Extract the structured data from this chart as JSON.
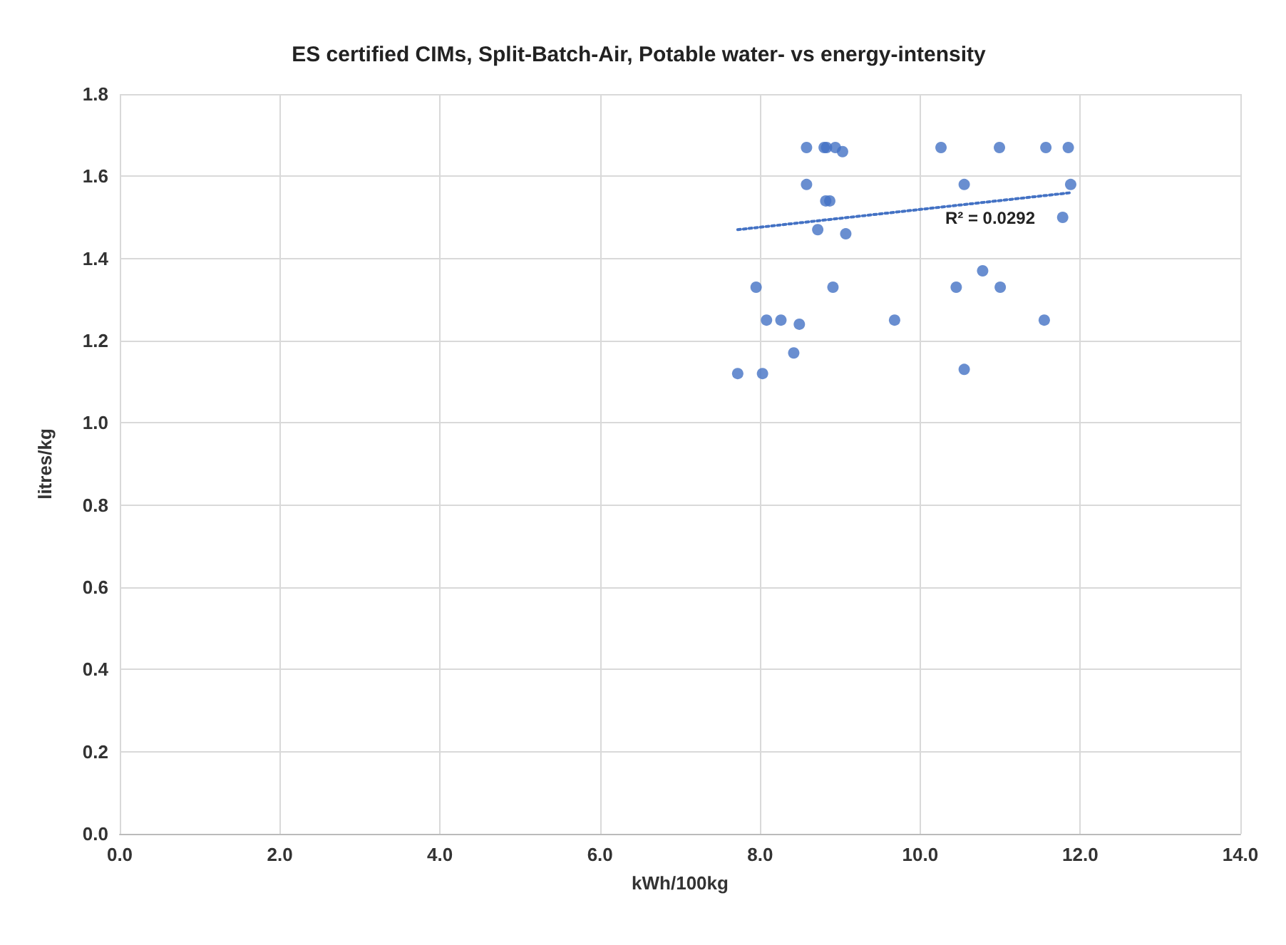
{
  "chart_data": {
    "type": "scatter",
    "title": "ES certified CIMs, Split-Batch-Air, Potable water- vs energy-intensity",
    "xlabel": "kWh/100kg",
    "ylabel": "litres/kg",
    "xlim": [
      0,
      14
    ],
    "xticks": [
      {
        "value": 0,
        "label": "0.0"
      },
      {
        "value": 2,
        "label": "2.0"
      },
      {
        "value": 4,
        "label": "4.0"
      },
      {
        "value": 6,
        "label": "6.0"
      },
      {
        "value": 8,
        "label": "8.0"
      },
      {
        "value": 10,
        "label": "10.0"
      },
      {
        "value": 12,
        "label": "12.0"
      },
      {
        "value": 14,
        "label": "14.0"
      }
    ],
    "ylim": [
      0,
      1.8
    ],
    "yticks": [
      {
        "value": 0,
        "label": "0.0"
      },
      {
        "value": 0.2,
        "label": "0.2"
      },
      {
        "value": 0.4,
        "label": "0.4"
      },
      {
        "value": 0.6,
        "label": "0.6"
      },
      {
        "value": 0.8,
        "label": "0.8"
      },
      {
        "value": 1.0,
        "label": "1.0"
      },
      {
        "value": 1.2,
        "label": "1.2"
      },
      {
        "value": 1.4,
        "label": "1.4"
      },
      {
        "value": 1.6,
        "label": "1.6"
      },
      {
        "value": 1.8,
        "label": "1.8"
      }
    ],
    "grid": true,
    "marker": "circle",
    "series": [
      {
        "color": "#4472c4",
        "x": [
          8.58,
          8.8,
          8.83,
          8.94,
          9.03,
          10.26,
          10.99,
          11.57,
          11.85,
          8.58,
          8.82,
          8.87,
          10.55,
          11.88,
          11.78,
          8.72,
          9.07,
          7.95,
          8.91,
          8.08,
          8.26,
          8.49,
          9.68,
          8.42,
          7.72,
          8.03,
          10.45,
          10.78,
          11.0,
          11.55,
          10.55
        ],
        "values": [
          1.67,
          1.67,
          1.67,
          1.67,
          1.66,
          1.67,
          1.67,
          1.67,
          1.67,
          1.58,
          1.54,
          1.54,
          1.58,
          1.58,
          1.5,
          1.47,
          1.46,
          1.33,
          1.33,
          1.25,
          1.25,
          1.24,
          1.25,
          1.17,
          1.12,
          1.12,
          1.33,
          1.37,
          1.33,
          1.25,
          1.13
        ]
      },
      {
        "type": "line",
        "color": "#4472c4",
        "line_style": "dotted",
        "marker": "none",
        "x": [
          7.72,
          11.88
        ],
        "values": [
          1.47,
          1.56
        ]
      }
    ],
    "annotations": [
      "R² = 0.0292"
    ]
  }
}
